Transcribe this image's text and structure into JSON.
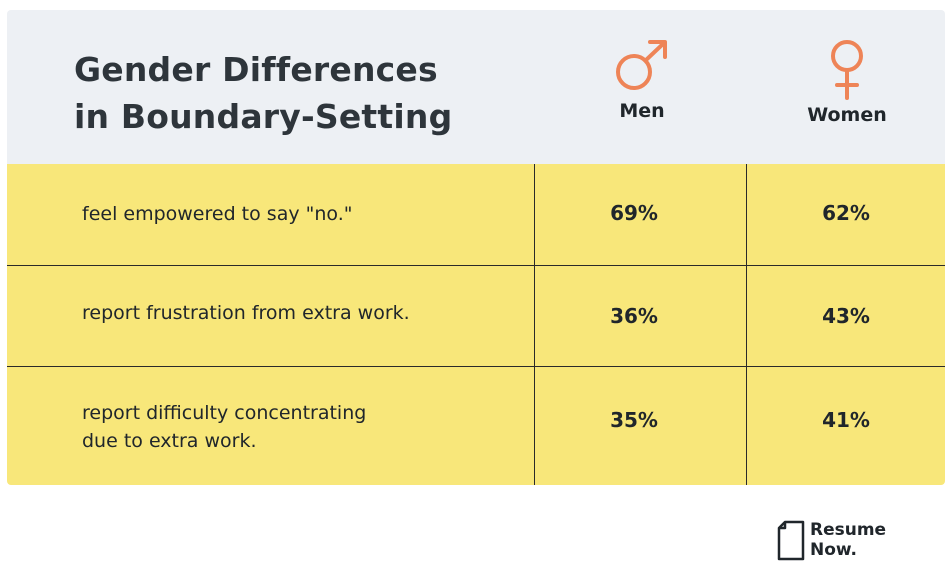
{
  "title_line1": "Gender Differences",
  "title_line2": "in Boundary-Setting",
  "columns": [
    {
      "label": "Men",
      "icon": "male-symbol-icon",
      "color": "#ee8457"
    },
    {
      "label": "Women",
      "icon": "female-symbol-icon",
      "color": "#ee8457"
    }
  ],
  "rows": [
    {
      "label": "feel empowered to say \"no.\"",
      "men": "69%",
      "women": "62%"
    },
    {
      "label": "report frustration from extra work.",
      "men": "36%",
      "women": "43%"
    },
    {
      "label": "report difficulty concentrating\ndue to extra work.",
      "men": "35%",
      "women": "41%"
    }
  ],
  "brand": {
    "text": "Resume\nNow.",
    "icon": "document-icon"
  },
  "colors": {
    "header_bg": "#edf0f4",
    "body_bg": "#f8e77a",
    "accent": "#ee8457",
    "text": "#20262b"
  },
  "chart_data": {
    "type": "table",
    "title": "Gender Differences in Boundary-Setting",
    "columns": [
      "Men",
      "Women"
    ],
    "categories": [
      "feel empowered to say \"no.\"",
      "report frustration from extra work.",
      "report difficulty concentrating due to extra work."
    ],
    "series": [
      {
        "name": "Men",
        "values": [
          69,
          36,
          35
        ]
      },
      {
        "name": "Women",
        "values": [
          62,
          43,
          41
        ]
      }
    ],
    "unit": "%"
  }
}
